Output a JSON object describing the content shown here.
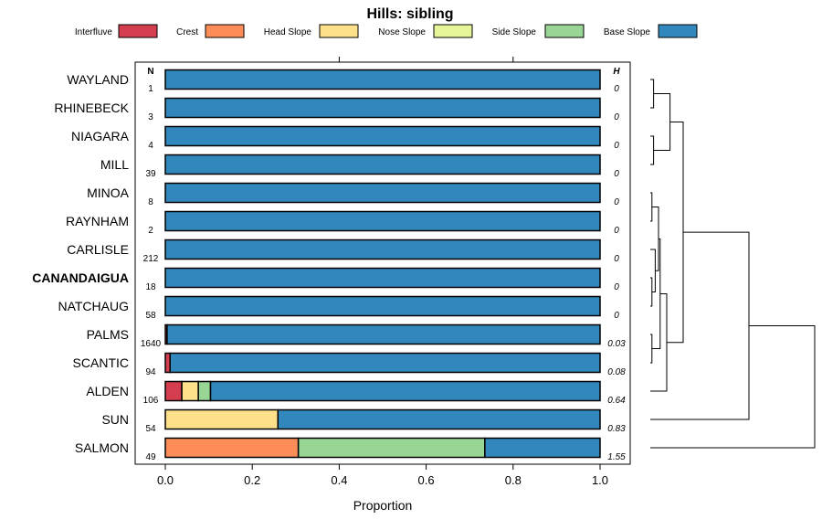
{
  "chart_data": {
    "type": "bar",
    "orientation": "horizontal-stacked",
    "title": "Hills: sibling",
    "xlabel": "Proportion",
    "xlim": [
      0,
      1
    ],
    "x_ticks": [
      "0.0",
      "0.2",
      "0.4",
      "0.6",
      "0.8",
      "1.0"
    ],
    "x_tick_values": [
      0,
      0.2,
      0.4,
      0.6,
      0.8,
      1.0
    ],
    "n_header": "N",
    "h_header": "H",
    "legend": [
      {
        "name": "Interfluve",
        "color": "#D53E4F"
      },
      {
        "name": "Crest",
        "color": "#FC8D59"
      },
      {
        "name": "Head Slope",
        "color": "#FEE08B"
      },
      {
        "name": "Nose Slope",
        "color": "#E6F598"
      },
      {
        "name": "Side Slope",
        "color": "#99D594"
      },
      {
        "name": "Base Slope",
        "color": "#3288BD"
      }
    ],
    "rows": [
      {
        "label": "WAYLAND",
        "n": "1",
        "h": "0",
        "bold": false,
        "values": [
          0,
          0,
          0,
          0,
          0,
          1
        ]
      },
      {
        "label": "RHINEBECK",
        "n": "3",
        "h": "0",
        "bold": false,
        "values": [
          0,
          0,
          0,
          0,
          0,
          1
        ]
      },
      {
        "label": "NIAGARA",
        "n": "4",
        "h": "0",
        "bold": false,
        "values": [
          0,
          0,
          0,
          0,
          0,
          1
        ]
      },
      {
        "label": "MILL",
        "n": "39",
        "h": "0",
        "bold": false,
        "values": [
          0,
          0,
          0,
          0,
          0,
          1
        ]
      },
      {
        "label": "MINOA",
        "n": "8",
        "h": "0",
        "bold": false,
        "values": [
          0,
          0,
          0,
          0,
          0,
          1
        ]
      },
      {
        "label": "RAYNHAM",
        "n": "2",
        "h": "0",
        "bold": false,
        "values": [
          0,
          0,
          0,
          0,
          0,
          1
        ]
      },
      {
        "label": "CARLISLE",
        "n": "212",
        "h": "0",
        "bold": false,
        "values": [
          0,
          0,
          0,
          0,
          0,
          1
        ]
      },
      {
        "label": "CANANDAIGUA",
        "n": "18",
        "h": "0",
        "bold": true,
        "values": [
          0,
          0,
          0,
          0,
          0,
          1
        ]
      },
      {
        "label": "NATCHAUG",
        "n": "58",
        "h": "0",
        "bold": false,
        "values": [
          0,
          0,
          0,
          0,
          0,
          1
        ]
      },
      {
        "label": "PALMS",
        "n": "1640",
        "h": "0.03",
        "bold": false,
        "values": [
          0.004,
          0,
          0,
          0,
          0,
          0.996
        ]
      },
      {
        "label": "SCANTIC",
        "n": "94",
        "h": "0.08",
        "bold": false,
        "values": [
          0.011,
          0,
          0,
          0,
          0,
          0.989
        ]
      },
      {
        "label": "ALDEN",
        "n": "106",
        "h": "0.64",
        "bold": false,
        "values": [
          0.038,
          0,
          0.038,
          0,
          0.028,
          0.896
        ]
      },
      {
        "label": "SUN",
        "n": "54",
        "h": "0.83",
        "bold": false,
        "values": [
          0,
          0,
          0.259,
          0,
          0,
          0.741
        ]
      },
      {
        "label": "SALMON",
        "n": "49",
        "h": "1.55",
        "bold": false,
        "values": [
          0,
          0.306,
          0,
          0,
          0.429,
          0.265
        ]
      }
    ],
    "dendrogram": {
      "description": "hierarchical clustering of the soil series",
      "merges": [
        [
          0,
          1,
          0.02
        ],
        [
          2,
          3,
          0.02
        ],
        [
          -1,
          -2,
          0.12
        ],
        [
          4,
          5,
          0.01
        ],
        [
          7,
          8,
          0.01
        ],
        [
          6,
          -5,
          0.03
        ],
        [
          -4,
          -6,
          0.05
        ],
        [
          9,
          10,
          0.01
        ],
        [
          -7,
          -8,
          0.06
        ],
        [
          -9,
          11,
          0.1
        ],
        [
          -10,
          -3,
          0.2
        ],
        [
          -11,
          12,
          0.6
        ],
        [
          -12,
          13,
          1.0
        ]
      ]
    }
  }
}
